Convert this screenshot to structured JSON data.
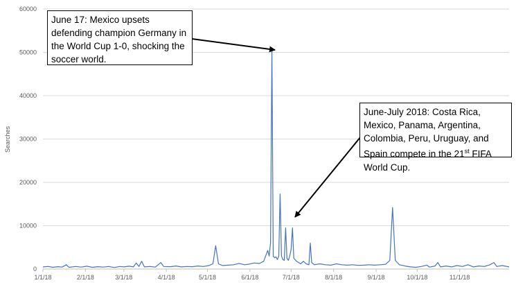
{
  "chart_data": {
    "type": "line",
    "title": "",
    "xlabel": "",
    "ylabel": "Searches",
    "ylim": [
      0,
      60000
    ],
    "y_ticks": [
      "0",
      "10000",
      "20000",
      "30000",
      "40000",
      "50000",
      "60000"
    ],
    "x_tick_labels": [
      "1/1/18",
      "2/1/18",
      "3/1/18",
      "4/1/18",
      "5/1/18",
      "6/1/18",
      "7/1/18",
      "8/1/18",
      "9/1/18",
      "10/1/18",
      "11/1/18"
    ],
    "x_range": [
      "2018-01-01",
      "2018-12-07"
    ],
    "grid": true,
    "line_color": "#4472c4",
    "series": [
      {
        "points": [
          [
            "2018-01-01",
            500
          ],
          [
            "2018-01-05",
            600
          ],
          [
            "2018-01-08",
            400
          ],
          [
            "2018-01-12",
            550
          ],
          [
            "2018-01-15",
            450
          ],
          [
            "2018-01-18",
            1000
          ],
          [
            "2018-01-20",
            400
          ],
          [
            "2018-01-25",
            600
          ],
          [
            "2018-01-29",
            450
          ],
          [
            "2018-02-02",
            650
          ],
          [
            "2018-02-06",
            400
          ],
          [
            "2018-02-10",
            550
          ],
          [
            "2018-02-14",
            450
          ],
          [
            "2018-02-18",
            600
          ],
          [
            "2018-02-22",
            350
          ],
          [
            "2018-02-26",
            600
          ],
          [
            "2018-03-01",
            500
          ],
          [
            "2018-03-05",
            650
          ],
          [
            "2018-03-08",
            500
          ],
          [
            "2018-03-10",
            1400
          ],
          [
            "2018-03-12",
            600
          ],
          [
            "2018-03-14",
            1800
          ],
          [
            "2018-03-16",
            500
          ],
          [
            "2018-03-20",
            600
          ],
          [
            "2018-03-24",
            450
          ],
          [
            "2018-03-28",
            1500
          ],
          [
            "2018-03-30",
            600
          ],
          [
            "2018-04-04",
            550
          ],
          [
            "2018-04-08",
            700
          ],
          [
            "2018-04-12",
            500
          ],
          [
            "2018-04-16",
            600
          ],
          [
            "2018-04-20",
            550
          ],
          [
            "2018-04-24",
            700
          ],
          [
            "2018-04-28",
            600
          ],
          [
            "2018-05-02",
            800
          ],
          [
            "2018-05-05",
            1200
          ],
          [
            "2018-05-07",
            5400
          ],
          [
            "2018-05-09",
            1200
          ],
          [
            "2018-05-12",
            800
          ],
          [
            "2018-05-16",
            900
          ],
          [
            "2018-05-20",
            1000
          ],
          [
            "2018-05-24",
            1300
          ],
          [
            "2018-05-28",
            1000
          ],
          [
            "2018-05-31",
            1100
          ],
          [
            "2018-06-04",
            1400
          ],
          [
            "2018-06-08",
            1300
          ],
          [
            "2018-06-11",
            1800
          ],
          [
            "2018-06-14",
            4300
          ],
          [
            "2018-06-15",
            3000
          ],
          [
            "2018-06-16",
            6000
          ],
          [
            "2018-06-17",
            50500
          ],
          [
            "2018-06-18",
            3000
          ],
          [
            "2018-06-19",
            2600
          ],
          [
            "2018-06-20",
            2800
          ],
          [
            "2018-06-21",
            2200
          ],
          [
            "2018-06-22",
            3000
          ],
          [
            "2018-06-23",
            17300
          ],
          [
            "2018-06-24",
            3000
          ],
          [
            "2018-06-25",
            2200
          ],
          [
            "2018-06-26",
            2000
          ],
          [
            "2018-06-27",
            9500
          ],
          [
            "2018-06-28",
            2500
          ],
          [
            "2018-06-29",
            2000
          ],
          [
            "2018-06-30",
            3000
          ],
          [
            "2018-07-01",
            4500
          ],
          [
            "2018-07-02",
            9500
          ],
          [
            "2018-07-03",
            2500
          ],
          [
            "2018-07-05",
            1800
          ],
          [
            "2018-07-08",
            1200
          ],
          [
            "2018-07-10",
            1800
          ],
          [
            "2018-07-12",
            1200
          ],
          [
            "2018-07-14",
            1000
          ],
          [
            "2018-07-15",
            6000
          ],
          [
            "2018-07-16",
            1500
          ],
          [
            "2018-07-18",
            1000
          ],
          [
            "2018-07-22",
            1200
          ],
          [
            "2018-07-26",
            1000
          ],
          [
            "2018-07-30",
            900
          ],
          [
            "2018-08-03",
            1200
          ],
          [
            "2018-08-07",
            1000
          ],
          [
            "2018-08-11",
            900
          ],
          [
            "2018-08-15",
            1000
          ],
          [
            "2018-08-19",
            850
          ],
          [
            "2018-08-23",
            900
          ],
          [
            "2018-08-27",
            1000
          ],
          [
            "2018-08-31",
            900
          ],
          [
            "2018-09-04",
            1000
          ],
          [
            "2018-09-08",
            1100
          ],
          [
            "2018-09-11",
            2000
          ],
          [
            "2018-09-13",
            14200
          ],
          [
            "2018-09-15",
            2000
          ],
          [
            "2018-09-18",
            1000
          ],
          [
            "2018-09-22",
            700
          ],
          [
            "2018-09-26",
            500
          ],
          [
            "2018-09-30",
            400
          ],
          [
            "2018-10-04",
            600
          ],
          [
            "2018-10-08",
            900
          ],
          [
            "2018-10-10",
            450
          ],
          [
            "2018-10-14",
            700
          ],
          [
            "2018-10-16",
            1500
          ],
          [
            "2018-10-18",
            500
          ],
          [
            "2018-10-22",
            700
          ],
          [
            "2018-10-26",
            500
          ],
          [
            "2018-10-30",
            800
          ],
          [
            "2018-11-03",
            600
          ],
          [
            "2018-11-07",
            1000
          ],
          [
            "2018-11-11",
            500
          ],
          [
            "2018-11-15",
            700
          ],
          [
            "2018-11-19",
            600
          ],
          [
            "2018-11-23",
            1000
          ],
          [
            "2018-11-26",
            1500
          ],
          [
            "2018-11-28",
            600
          ],
          [
            "2018-12-02",
            800
          ],
          [
            "2018-12-07",
            500
          ]
        ]
      }
    ],
    "annotations": [
      {
        "text": "June 17: Mexico upsets defending champion Germany in the World Cup 1-0, shocking the soccer world.",
        "points_to": [
          "2018-06-17",
          50500
        ]
      },
      {
        "text_parts": {
          "before": "June-July 2018: Costa Rica, Mexico, Panama, Argentina, Colombia, Peru, Uruguay, and Spain compete in the 21",
          "superscript": "st",
          "after": " FIFA World Cup."
        },
        "points_to": [
          "2018-06-25",
          12000
        ]
      }
    ]
  }
}
